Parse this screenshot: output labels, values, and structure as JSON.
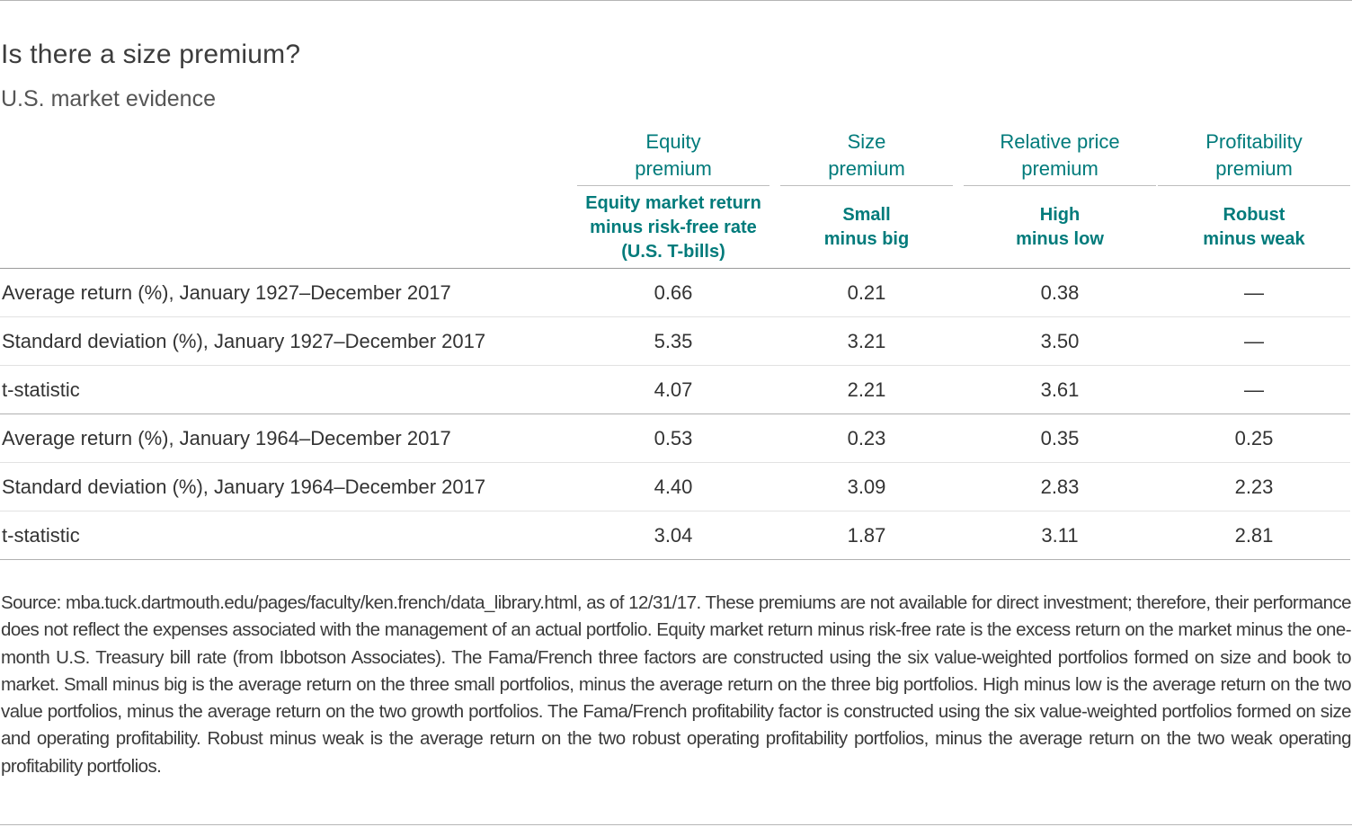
{
  "title": "Is there a size premium?",
  "subtitle": "U.S. market evidence",
  "columns": [
    {
      "name": [
        "Equity",
        "premium"
      ],
      "definition": [
        "Equity market return",
        "minus risk-free rate",
        "(U.S. T-bills)"
      ]
    },
    {
      "name": [
        "Size",
        "premium"
      ],
      "definition": [
        "Small",
        "minus big"
      ]
    },
    {
      "name": [
        "Relative price",
        "premium"
      ],
      "definition": [
        "High",
        "minus low"
      ]
    },
    {
      "name": [
        "Profitability",
        "premium"
      ],
      "definition": [
        "Robust",
        "minus weak"
      ]
    }
  ],
  "rows": [
    {
      "label": "Average return (%), January 1927–December 2017",
      "values": [
        "0.66",
        "0.21",
        "0.38",
        "—"
      ]
    },
    {
      "label": "Standard deviation (%), January 1927–December 2017",
      "values": [
        "5.35",
        "3.21",
        "3.50",
        "—"
      ]
    },
    {
      "label": "t-statistic",
      "values": [
        "4.07",
        "2.21",
        "3.61",
        "—"
      ]
    },
    {
      "label": "Average return (%), January 1964–December 2017",
      "values": [
        "0.53",
        "0.23",
        "0.35",
        "0.25"
      ]
    },
    {
      "label": "Standard deviation (%), January 1964–December 2017",
      "values": [
        "4.40",
        "3.09",
        "2.83",
        "2.23"
      ]
    },
    {
      "label": "t-statistic",
      "values": [
        "3.04",
        "1.87",
        "3.11",
        "2.81"
      ]
    }
  ],
  "footnote": "Source: mba.tuck.dartmouth.edu/pages/faculty/ken.french/data_library.html, as of 12/31/17. These premiums are not available for direct investment; therefore, their performance does not reflect the expenses associated with the management of an actual portfolio. Equity market return minus risk-free rate is the excess return on the market minus the one-month U.S. Treasury bill rate (from Ibbotson Associates). The Fama/French three factors are constructed using the six value-weighted portfolios formed on size and book to market. Small minus big is the average return on the three small portfolios, minus the average return on the three big portfolios. High minus low is the average return on the two value portfolios, minus the average return on the two growth portfolios. The Fama/French profitability factor is constructed using the six value-weighted portfolios formed on size and operating profitability. Robust minus weak is the average return on the two robust operating profitability portfolios, minus the average return on the two weak operating profitability portfolios.",
  "colors": {
    "header_accent": "#007b7b",
    "body_text": "#333333"
  }
}
